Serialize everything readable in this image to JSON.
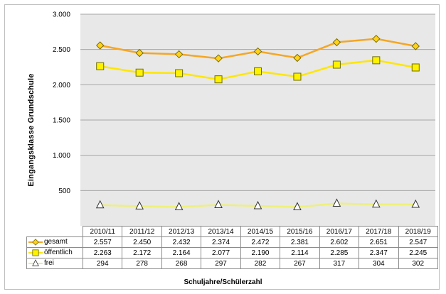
{
  "chart_data": {
    "type": "line",
    "categories": [
      "2010/11",
      "2011/12",
      "2012/13",
      "2013/14",
      "2014/15",
      "2015/16",
      "2016/17",
      "2017/18",
      "2018/19"
    ],
    "series": [
      {
        "name": "gesamt",
        "values": [
          2557,
          2450,
          2432,
          2374,
          2472,
          2381,
          2602,
          2651,
          2547
        ],
        "display": [
          "2.557",
          "2.450",
          "2.432",
          "2.374",
          "2.472",
          "2.381",
          "2.602",
          "2.651",
          "2.547"
        ],
        "color": "#f5a623",
        "marker": "diamond",
        "marker_fill": "#ffd21a"
      },
      {
        "name": "öffentlich",
        "values": [
          2263,
          2172,
          2164,
          2077,
          2190,
          2114,
          2285,
          2347,
          2245
        ],
        "display": [
          "2.263",
          "2.172",
          "2.164",
          "2.077",
          "2.190",
          "2.114",
          "2.285",
          "2.347",
          "2.245"
        ],
        "color": "#ffe600",
        "marker": "square",
        "marker_fill": "#fff200"
      },
      {
        "name": "frei",
        "values": [
          294,
          278,
          268,
          297,
          282,
          267,
          317,
          304,
          302
        ],
        "display": [
          "294",
          "278",
          "268",
          "297",
          "282",
          "267",
          "317",
          "304",
          "302"
        ],
        "color": "#eef07a",
        "marker": "triangle",
        "marker_fill": "#ffffff"
      }
    ],
    "ylabel": "Eingangsklasse  Grundschule",
    "xlabel": "Schuljahre/Schülerzahl",
    "ylim": [
      0,
      3000
    ],
    "yticks": [
      500,
      1000,
      1500,
      2000,
      2500,
      3000
    ],
    "ytick_labels": [
      "500",
      "1.000",
      "1.500",
      "2.000",
      "2.500",
      "3.000"
    ],
    "grid": true,
    "legend": "data-table-left"
  }
}
